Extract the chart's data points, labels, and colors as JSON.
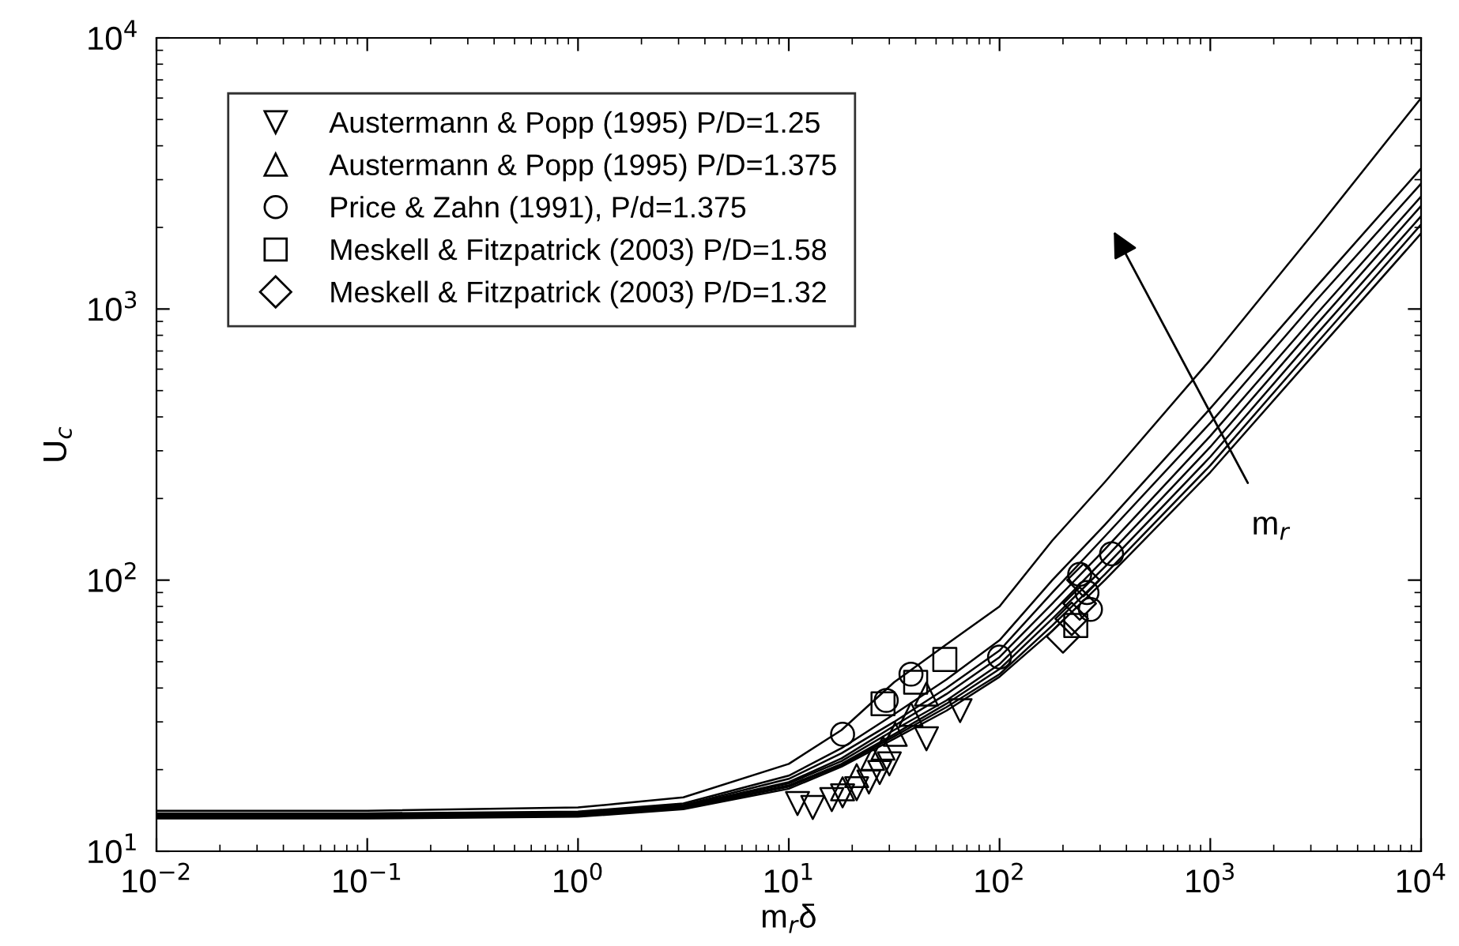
{
  "chart_data": {
    "type": "line",
    "xlabel": "m$_{r}$δ",
    "ylabel": "U$_{c}$",
    "log": "xy",
    "grid": false,
    "legend": "top left",
    "marker": "none",
    "line_style": "solid",
    "xlim": [
      0.01,
      10000
    ],
    "ylim": [
      10,
      10000
    ],
    "xticks": [
      {
        "value": 0.01,
        "label": "10$^{−2}$"
      },
      {
        "value": 0.1,
        "label": "10$^{−1}$"
      },
      {
        "value": 1,
        "label": "10$^{0}$"
      },
      {
        "value": 10,
        "label": "10$^{1}$"
      },
      {
        "value": 100,
        "label": "10$^{2}$"
      },
      {
        "value": 1000,
        "label": "10$^{3}$"
      },
      {
        "value": 10000,
        "label": "10$^{4}$"
      }
    ],
    "yticks": [
      {
        "value": 10,
        "label": "10$^{1}$"
      },
      {
        "value": 100,
        "label": "10$^{2}$"
      },
      {
        "value": 1000,
        "label": "10$^{3}$"
      },
      {
        "value": 10000,
        "label": "10$^{4}$"
      }
    ],
    "annotations": [
      "m$_{r}$"
    ],
    "series": [
      {
        "color": "#000000",
        "x": [
          0.01,
          0.1,
          1,
          3.16,
          10,
          17.8,
          31.6,
          56,
          100,
          178,
          316,
          1000,
          3160,
          10000
        ],
        "values": [
          14.1,
          14.1,
          14.5,
          15.8,
          21,
          28,
          42,
          58,
          80,
          140,
          230,
          650,
          1950,
          6000
        ]
      },
      {
        "color": "#000000",
        "x": [
          0.01,
          0.1,
          1,
          3.16,
          10,
          17.8,
          31.6,
          56,
          100,
          178,
          316,
          1000,
          3160,
          10000
        ],
        "values": [
          13.8,
          13.8,
          14,
          15,
          19,
          24,
          32,
          43,
          60,
          100,
          160,
          430,
          1200,
          3300
        ]
      },
      {
        "color": "#000000",
        "x": [
          0.01,
          0.1,
          1,
          3.16,
          10,
          17.8,
          31.6,
          56,
          100,
          178,
          316,
          1000,
          3160,
          10000
        ],
        "values": [
          13.7,
          13.7,
          13.9,
          14.8,
          18.5,
          23,
          30,
          40,
          55,
          90,
          145,
          380,
          1070,
          2900
        ]
      },
      {
        "color": "#000000",
        "x": [
          0.01,
          0.1,
          1,
          3.16,
          10,
          17.8,
          31.6,
          56,
          100,
          178,
          316,
          1000,
          3160,
          10000
        ],
        "values": [
          13.6,
          13.6,
          13.8,
          14.7,
          18,
          22,
          29,
          38,
          52,
          82,
          130,
          340,
          950,
          2600
        ]
      },
      {
        "color": "#000000",
        "x": [
          0.01,
          0.1,
          1,
          3.16,
          10,
          17.8,
          31.6,
          56,
          100,
          178,
          316,
          1000,
          3160,
          10000
        ],
        "values": [
          13.5,
          13.5,
          13.7,
          14.6,
          17.8,
          21.5,
          28,
          36,
          49,
          76,
          120,
          310,
          870,
          2400
        ]
      },
      {
        "color": "#000000",
        "x": [
          0.01,
          0.1,
          1,
          3.16,
          10,
          17.8,
          31.6,
          56,
          100,
          178,
          316,
          1000,
          3160,
          10000
        ],
        "values": [
          13.4,
          13.4,
          13.6,
          14.5,
          17.5,
          21,
          27,
          35,
          47,
          72,
          112,
          285,
          800,
          2200
        ]
      },
      {
        "color": "#000000",
        "x": [
          0.01,
          0.1,
          1,
          3.16,
          10,
          17.8,
          31.6,
          56,
          100,
          178,
          316,
          1000,
          3160,
          10000
        ],
        "values": [
          13.3,
          13.3,
          13.5,
          14.4,
          17.3,
          20.8,
          26.5,
          34,
          45,
          68,
          105,
          265,
          740,
          2050
        ]
      },
      {
        "color": "#000000",
        "x": [
          0.01,
          0.1,
          1,
          3.16,
          10,
          17.8,
          31.6,
          56,
          100,
          178,
          316,
          1000,
          3160,
          10000
        ],
        "values": [
          13.2,
          13.2,
          13.4,
          14.3,
          17,
          20.5,
          26,
          33,
          44,
          65,
          100,
          250,
          690,
          1900
        ]
      },
      {
        "type": "scatter",
        "name": "Austermann & Popp (1995) P/D=1.25",
        "marker": "triangle_down",
        "color": "#000000",
        "x": [
          11,
          13,
          16,
          18,
          21,
          24,
          27,
          30,
          45,
          65
        ],
        "values": [
          15,
          14.5,
          15.5,
          16,
          17,
          18,
          19.5,
          21,
          26,
          33
        ]
      },
      {
        "type": "scatter",
        "name": "Austermann & Popp (1995) P/D=1.375",
        "marker": "triangle",
        "color": "#000000",
        "x": [
          18,
          21,
          25,
          28,
          32,
          38,
          45
        ],
        "values": [
          17,
          19,
          22,
          24,
          27,
          32,
          38
        ]
      },
      {
        "type": "scatter",
        "name": "Price & Zahn (1991), P/d=1.375",
        "marker": "circle",
        "color": "#000000",
        "x": [
          18,
          29,
          38,
          100,
          240,
          260,
          270,
          340
        ],
        "values": [
          27,
          36,
          45,
          52,
          105,
          90,
          78,
          125
        ]
      },
      {
        "type": "scatter",
        "name": "Meskell & Fitzpatrick (2003) P/D=1.58",
        "marker": "square",
        "color": "#000000",
        "x": [
          28,
          40,
          55,
          230
        ],
        "values": [
          35,
          42,
          51,
          68
        ]
      },
      {
        "type": "scatter",
        "name": "Meskell & Fitzpatrick (2003) P/D=1.32",
        "marker": "diamond",
        "color": "#000000",
        "x": [
          200,
          220,
          240,
          250
        ],
        "values": [
          62,
          72,
          82,
          100
        ]
      }
    ]
  }
}
